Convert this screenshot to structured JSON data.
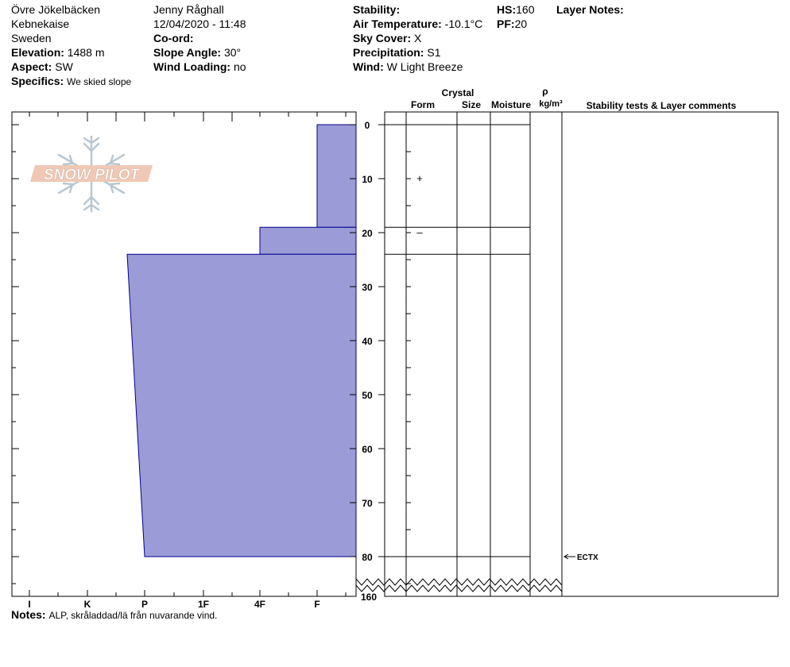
{
  "header": {
    "location": "Övre Jökelbäcken",
    "region": "Kebnekaise",
    "country": "Sweden",
    "elevation_label": "Elevation:",
    "elevation_value": "1488 m",
    "aspect_label": "Aspect:",
    "aspect_value": "SW",
    "specifics_label": "Specifics:",
    "specifics_value": "We skied slope",
    "observer": "Jenny Råghall",
    "datetime": "12/04/2020 - 11:48",
    "coord_label": "Co-ord:",
    "slope_label": "Slope Angle:",
    "slope_value": "30°",
    "wind_loading_label": "Wind Loading:",
    "wind_loading_value": "no",
    "stability_label": "Stability:",
    "air_temp_label": "Air Temperature:",
    "air_temp_value": "-10.1°C",
    "sky_label": "Sky Cover:",
    "sky_value": "X",
    "precip_label": "Precipitation:",
    "precip_value": "S1",
    "wind_label": "Wind:",
    "wind_value": "W Light Breeze",
    "hs_label": "HS:",
    "hs_value": "160",
    "pf_label": "PF:",
    "pf_value": "20",
    "layer_notes_label": "Layer Notes:"
  },
  "logo": {
    "text": "SNOW PILOT"
  },
  "columns": {
    "crystal": "Crystal",
    "form": "Form",
    "size": "Size",
    "moisture": "Moisture",
    "rho": "ρ",
    "density_unit": "kg/m³",
    "stability": "Stability tests & Layer comments"
  },
  "notes": {
    "label": "Notes:",
    "value": "ALP, skråladdad/lä från nuvarande vind."
  },
  "colors": {
    "hardness_fill": "#9b9bd7",
    "hardness_stroke": "#00008b"
  },
  "chart_data": {
    "type": "area",
    "title": "",
    "x_categories": [
      "I",
      "K",
      "P",
      "1F",
      "4F",
      "F"
    ],
    "y_ticks": [
      0,
      10,
      20,
      30,
      40,
      50,
      60,
      70,
      80
    ],
    "y_bottom_label": "160",
    "ylim": [
      0,
      80
    ],
    "y_axis_inverted": true,
    "x_axis_reversed": true,
    "layers": [
      {
        "top": 0,
        "bottom": 19,
        "hardness_top": "F",
        "hardness_bottom": "F"
      },
      {
        "top": 19,
        "bottom": 24,
        "hardness_top": "4F",
        "hardness_bottom": "4F"
      },
      {
        "top": 24,
        "bottom": 80,
        "hardness_top": "P+",
        "hardness_bottom": "P"
      }
    ],
    "layer_boundaries": [
      0,
      19,
      24,
      80
    ],
    "grain_forms": [
      {
        "depth": 10,
        "symbol": "+"
      },
      {
        "depth": 20,
        "symbol": "–"
      }
    ],
    "stability_tests": [
      {
        "depth": 80,
        "label": "ECTX"
      }
    ]
  }
}
